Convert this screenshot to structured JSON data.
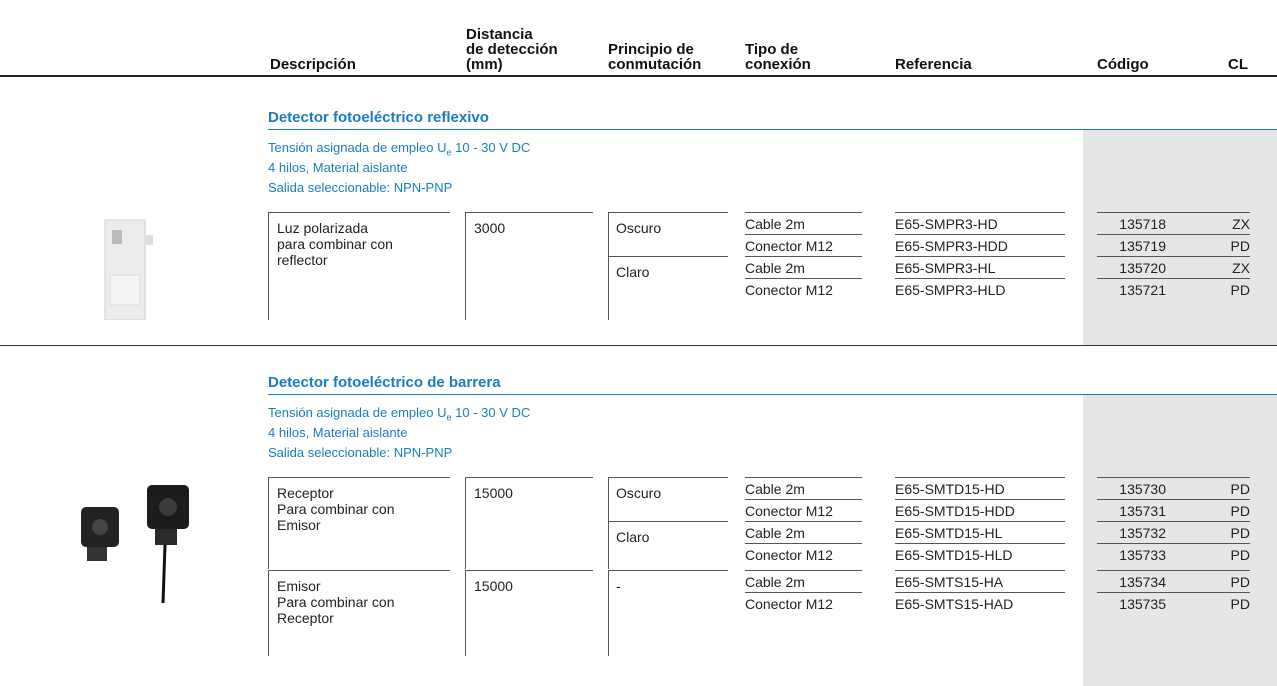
{
  "header": {
    "columns": [
      [
        "Descripción"
      ],
      [
        "Distancia",
        "de detección",
        "(mm)"
      ],
      [
        "Principio de",
        "conmutación"
      ],
      [
        "Tipo de",
        "conexión"
      ],
      [
        "Referencia"
      ],
      [
        "Código"
      ],
      [
        "CL"
      ]
    ]
  },
  "sections": [
    {
      "title": "Detector fotoeléctrico reflexivo",
      "notes": [
        {
          "text": "Tensión asignada de empleo U",
          "sub": "e",
          "after": " 10 - 30 V DC"
        },
        {
          "text": "4 hilos, Material aislante"
        },
        {
          "text": "Salida seleccionable: NPN-PNP"
        }
      ],
      "groups": [
        {
          "description": [
            "Luz polarizada",
            "para combinar con",
            "reflector"
          ],
          "distance": "3000",
          "modes": [
            {
              "principle": "Oscuro",
              "connections": [
                {
                  "type": "Cable 2m",
                  "reference": "E65-SMPR3-HD",
                  "code": "135718",
                  "cl": "ZX"
                },
                {
                  "type": "Conector M12",
                  "reference": "E65-SMPR3-HDD",
                  "code": "135719",
                  "cl": "PD"
                }
              ]
            },
            {
              "principle": "Claro",
              "connections": [
                {
                  "type": "Cable 2m",
                  "reference": "E65-SMPR3-HL",
                  "code": "135720",
                  "cl": "ZX"
                },
                {
                  "type": "Conector M12",
                  "reference": "E65-SMPR3-HLD",
                  "code": "135721",
                  "cl": "PD"
                }
              ]
            }
          ]
        }
      ]
    },
    {
      "title": "Detector fotoeléctrico de barrera",
      "notes": [
        {
          "text": "Tensión asignada de empleo U",
          "sub": "e",
          "after": " 10 - 30 V DC"
        },
        {
          "text": "4 hilos, Material aislante"
        },
        {
          "text": "Salida seleccionable: NPN-PNP"
        }
      ],
      "groups": [
        {
          "description": [
            "Receptor",
            "Para combinar con",
            "Emisor"
          ],
          "distance": "15000",
          "modes": [
            {
              "principle": "Oscuro",
              "connections": [
                {
                  "type": "Cable 2m",
                  "reference": "E65-SMTD15-HD",
                  "code": "135730",
                  "cl": "PD"
                },
                {
                  "type": "Conector M12",
                  "reference": "E65-SMTD15-HDD",
                  "code": "135731",
                  "cl": "PD"
                }
              ]
            },
            {
              "principle": "Claro",
              "connections": [
                {
                  "type": "Cable 2m",
                  "reference": "E65-SMTD15-HL",
                  "code": "135732",
                  "cl": "PD"
                },
                {
                  "type": "Conector M12",
                  "reference": "E65-SMTD15-HLD",
                  "code": "135733",
                  "cl": "PD"
                }
              ]
            }
          ]
        },
        {
          "description": [
            "Emisor",
            "Para combinar con",
            "Receptor"
          ],
          "distance": "15000",
          "modes": [
            {
              "principle": "-",
              "connections": [
                {
                  "type": "Cable 2m",
                  "reference": "E65-SMTS15-HA",
                  "code": "135734",
                  "cl": "PD"
                },
                {
                  "type": "Conector M12",
                  "reference": "E65-SMTS15-HAD",
                  "code": "135735",
                  "cl": "PD"
                }
              ]
            }
          ]
        }
      ]
    }
  ]
}
